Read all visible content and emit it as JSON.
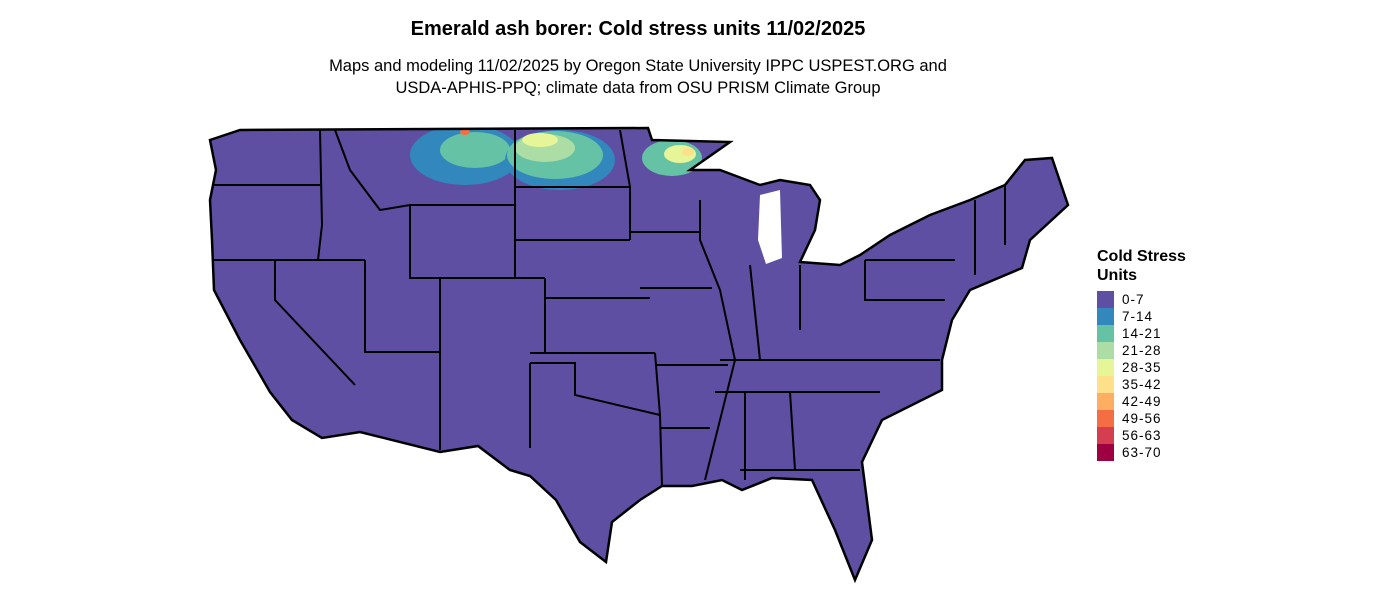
{
  "title": "Emerald ash borer: Cold stress units 11/02/2025",
  "subtitle_line1": "Maps and modeling 11/02/2025 by Oregon State University IPPC USPEST.ORG and",
  "subtitle_line2": "USDA-APHIS-PPQ; climate data from OSU PRISM Climate Group",
  "legend": {
    "title_line1": "Cold Stress",
    "title_line2": "Units",
    "items": [
      {
        "label": "0-7",
        "color": "#5E4FA2"
      },
      {
        "label": "7-14",
        "color": "#3288BD"
      },
      {
        "label": "14-21",
        "color": "#66C2A5"
      },
      {
        "label": "21-28",
        "color": "#ABDDA4"
      },
      {
        "label": "28-35",
        "color": "#E6F598"
      },
      {
        "label": "35-42",
        "color": "#FEE08B"
      },
      {
        "label": "42-49",
        "color": "#FDAE61"
      },
      {
        "label": "49-56",
        "color": "#F46D43"
      },
      {
        "label": "56-63",
        "color": "#D53E4F"
      },
      {
        "label": "63-70",
        "color": "#9E0142"
      }
    ]
  }
}
